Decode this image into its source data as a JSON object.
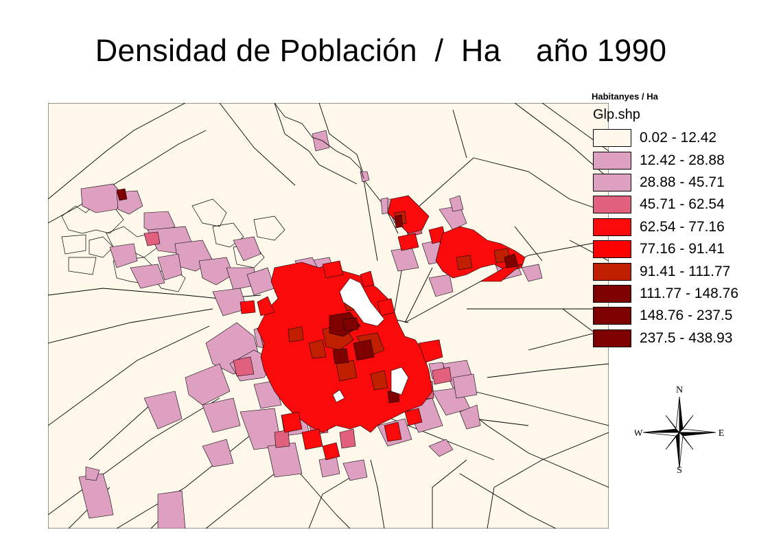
{
  "title": "Densidad de Población  /  Ha    año 1990",
  "legend": {
    "heading": "Habitanyes / Ha",
    "layer": "Glp.shp",
    "classes": [
      {
        "label": "0.02 - 12.42",
        "color": "#fdf8ea"
      },
      {
        "label": "12.42 - 28.88",
        "color": "#dea0c0"
      },
      {
        "label": "28.88 - 45.71",
        "color": "#dea0c0"
      },
      {
        "label": "45.71 - 62.54",
        "color": "#e0607e"
      },
      {
        "label": "62.54 - 77.16",
        "color": "#fa0a0a"
      },
      {
        "label": "77.16 - 91.41",
        "color": "#ff0000"
      },
      {
        "label": "91.41 - 111.77",
        "color": "#c02000"
      },
      {
        "label": "111.77 - 148.76",
        "color": "#7e0000"
      },
      {
        "label": "148.76 - 237.5",
        "color": "#7e0000"
      },
      {
        "label": "237.5 - 438.93",
        "color": "#7e0000"
      }
    ]
  },
  "compass": {
    "n": "N",
    "s": "S",
    "e": "E",
    "w": "W"
  },
  "colors": {
    "background": "#fdf8ea",
    "outline": "#000000"
  }
}
